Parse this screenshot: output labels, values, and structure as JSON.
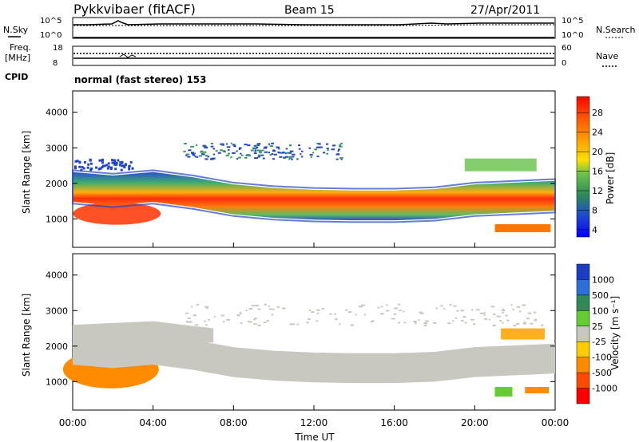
{
  "header": {
    "title": "Pykkvibaer (fitACF)",
    "beam": "Beam 15",
    "date": "27/Apr/2011"
  },
  "top_panels": {
    "nsky_label": "N.Sky",
    "nsky_ticks": [
      "10^5",
      "10^0"
    ],
    "nsearch_label": "N.Search",
    "nsearch_ticks": [
      "10^5",
      "10^0"
    ],
    "freq_label": "Freq.",
    "freq_unit": "[MHz]",
    "freq_ticks": [
      "18",
      "8"
    ],
    "nave_label": "Nave",
    "nave_ticks": [
      "60",
      "0"
    ],
    "cpid_label": "CPID",
    "cpid_text": "normal (fast stereo) 153"
  },
  "colors": {
    "echo_band_core": "#ff2a00",
    "echo_band_edge": "#1f3fbf",
    "velocity_gray": "#c8c8c0",
    "velocity_orange": "#ff8c00"
  },
  "chart_data": [
    {
      "type": "heatmap",
      "name": "power",
      "ylabel": "Slant Range [km]",
      "yticks": [
        "4000",
        "3000",
        "2000",
        "1000"
      ],
      "ylim": [
        200,
        4600
      ],
      "xlim_hours": [
        0,
        24
      ],
      "colorbar_label": "Power [dB]",
      "colorbar_ticks": [
        "28",
        "24",
        "20",
        "16",
        "12",
        "8",
        "4"
      ],
      "colorbar_colors": [
        "#0000ff",
        "#1f4fd8",
        "#2e8b57",
        "#55c24a",
        "#a6d83c",
        "#ffe000",
        "#ff9900",
        "#ff5a00",
        "#ff0000"
      ],
      "main_band": {
        "time_hours": [
          0,
          2,
          4,
          6,
          8,
          10,
          12,
          14,
          16,
          18,
          20,
          22,
          24
        ],
        "range_km": [
          1900,
          1800,
          1900,
          1750,
          1550,
          1450,
          1400,
          1380,
          1380,
          1420,
          1550,
          1600,
          1650
        ]
      }
    },
    {
      "type": "heatmap",
      "name": "velocity",
      "ylabel": "Slant Range [km]",
      "yticks": [
        "4000",
        "3000",
        "2000",
        "1000"
      ],
      "ylim": [
        200,
        4600
      ],
      "xlim_hours": [
        0,
        24
      ],
      "colorbar_label": "Velocity [m s⁻¹]",
      "colorbar_ticks": [
        "1000",
        "500",
        "100",
        "25",
        "-25",
        "-100",
        "-500",
        "-1000"
      ],
      "colorbar_colors": [
        "#1a3fbf",
        "#2d6fd9",
        "#2e8b57",
        "#66cc33",
        "#c8c8c0",
        "#ffcc00",
        "#ff8c00",
        "#ff4a00",
        "#ff0000"
      ],
      "xticks": [
        "00:00",
        "04:00",
        "08:00",
        "12:00",
        "16:00",
        "20:00",
        "00:00"
      ],
      "xlabel": "Time UT"
    }
  ]
}
